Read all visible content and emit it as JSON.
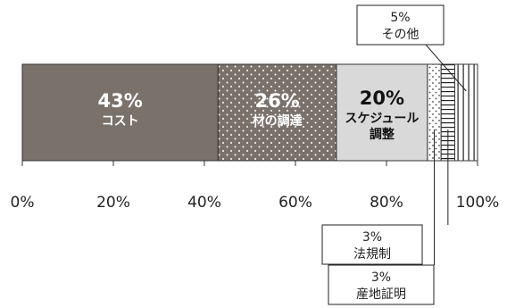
{
  "chart_data": {
    "type": "bar",
    "orientation": "horizontal-stacked-100",
    "title": "",
    "xlabel": "",
    "ylabel": "",
    "xlim": [
      0,
      100
    ],
    "ticks": [
      "0%",
      "20%",
      "40%",
      "60%",
      "80%",
      "100%"
    ],
    "tick_values": [
      0,
      20,
      40,
      60,
      80,
      100
    ],
    "grid": false,
    "legend": "none",
    "segments": [
      {
        "pct_label": "43%",
        "name_lines": [
          "コスト"
        ],
        "value": 43,
        "fill": "#7a716b",
        "pattern": "solid",
        "text_color": "#ffffff",
        "label_position": "inside"
      },
      {
        "pct_label": "26%",
        "name_lines": [
          "材の調達"
        ],
        "value": 26,
        "fill": "#7a716b",
        "pattern": "dots-white",
        "text_color": "#ffffff",
        "label_position": "inside"
      },
      {
        "pct_label": "20%",
        "name_lines": [
          "スケジュール",
          "調整"
        ],
        "value": 20,
        "fill": "#d9d9d9",
        "pattern": "solid",
        "text_color": "#111111",
        "label_position": "inside"
      },
      {
        "pct_label": "3%",
        "name_lines": [
          "産地証明"
        ],
        "value": 3,
        "fill": "#ffffff",
        "pattern": "dots-dark",
        "text_color": "#222222",
        "label_position": "callout-bottom"
      },
      {
        "pct_label": "3%",
        "name_lines": [
          "法規制"
        ],
        "value": 3,
        "fill": "#ffffff",
        "pattern": "horizontal-lines",
        "text_color": "#222222",
        "label_position": "callout-bottom"
      },
      {
        "pct_label": "5%",
        "name_lines": [
          "その他"
        ],
        "value": 5,
        "fill": "#ffffff",
        "pattern": "vertical-lines",
        "text_color": "#222222",
        "label_position": "callout-top"
      }
    ]
  }
}
